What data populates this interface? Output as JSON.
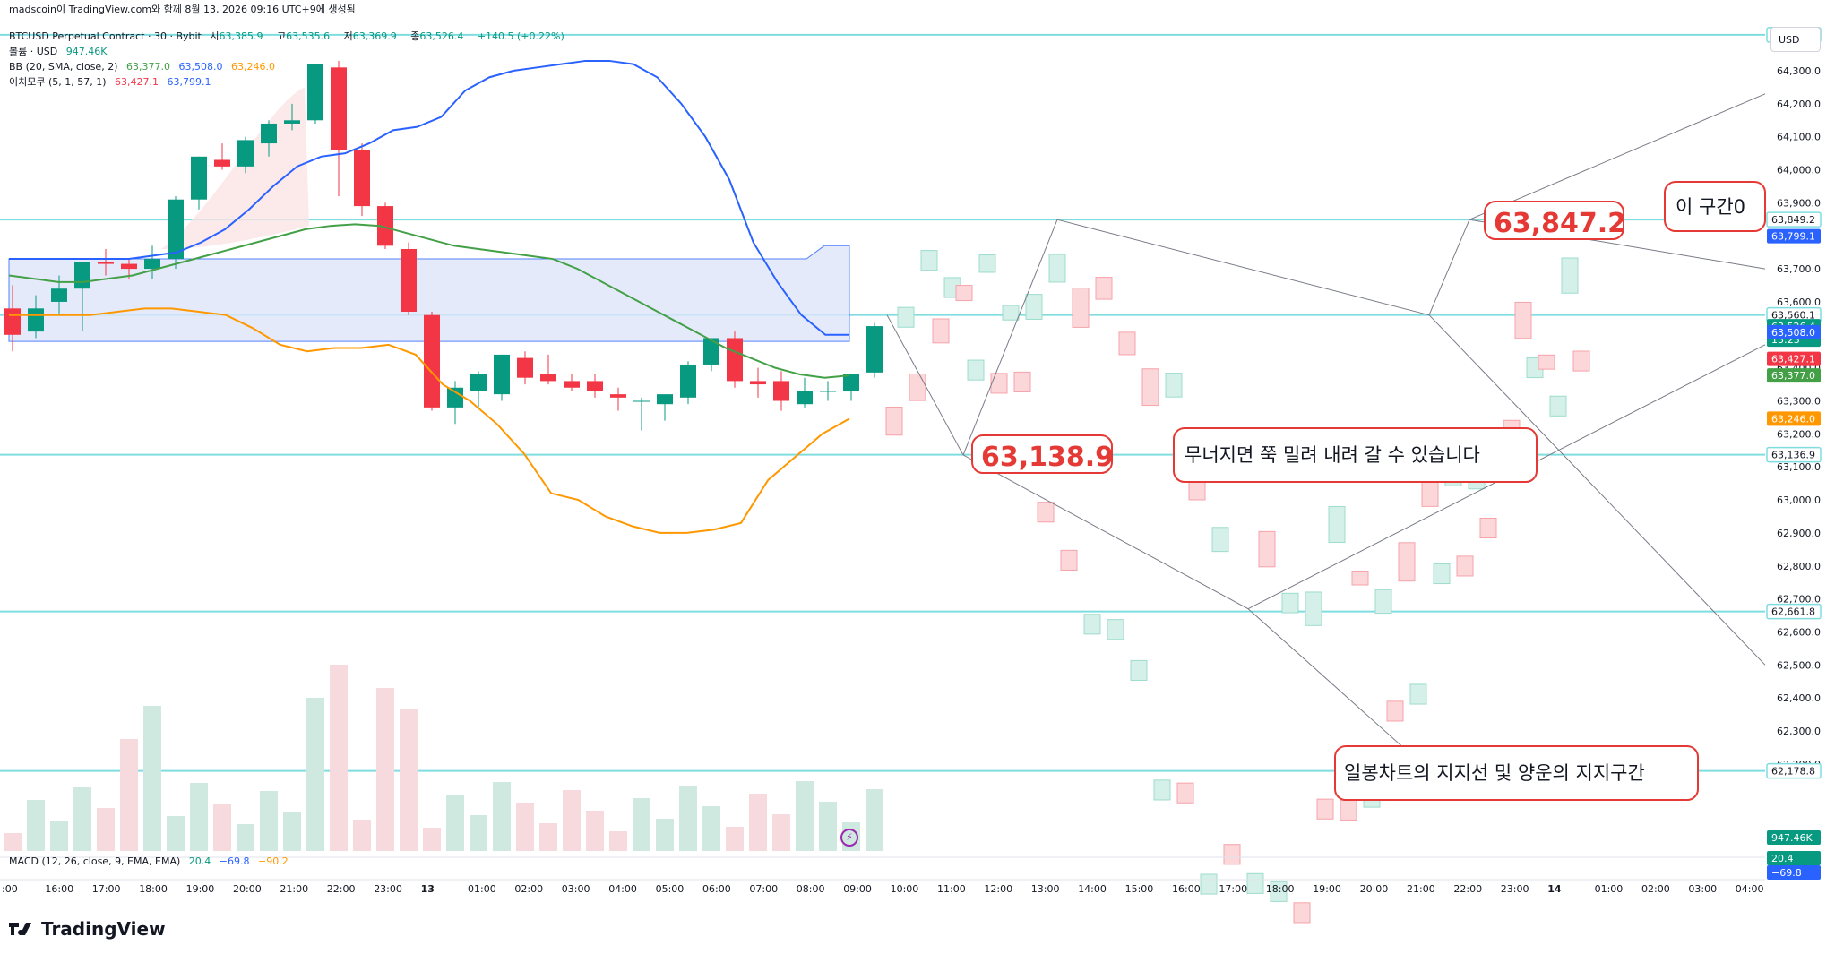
{
  "header": {
    "title": "madscoin이 TradingView.com와 함께 8월 13, 2026 09:16 UTC+9에 생성됨",
    "symbol": "BTCUSD Perpetual Contract · 30 · Bybit",
    "open_label": "시",
    "open": "63,385.9",
    "high_label": "고",
    "high": "63,535.6",
    "low_label": "저",
    "low": "63,369.9",
    "close_label": "종",
    "close": "63,526.4",
    "change": "+140.5 (+0.22%)",
    "volume_label": "볼륨 · USD",
    "volume_value": "947.46K",
    "bb_label": "BB (20, SMA, close, 2)",
    "bb_basis": "63,377.0",
    "bb_upper": "63,508.0",
    "bb_lower": "63,246.0",
    "ichimoku_label": "이치모쿠 (5, 1, 57, 1)",
    "ichimoku_a": "63,427.1",
    "ichimoku_b": "63,799.1",
    "macd_label": "MACD (12, 26, close, 9, EMA, EMA)",
    "macd_v1": "20.4",
    "macd_v2": "−69.8",
    "macd_v3": "−90.2"
  },
  "currency_button": "USD",
  "brand": "TradingView",
  "colors": {
    "up": "#089981",
    "down": "#f23645",
    "bb_upper": "#2962ff",
    "bb_basis": "#43a047",
    "bb_lower": "#ff9800",
    "hline": "#7fdde0",
    "annotation": "#e53935"
  },
  "annotations": {
    "price_low": "63,138.9",
    "price_high": "63,847.2",
    "note_collapse": "무너지면 쭉 밀려 내려 갈 수 있습니다",
    "note_section": "이 구간0",
    "note_support": "일봉차트의 지지선 및 양운의 지지구간"
  },
  "chart_data": {
    "type": "candlestick",
    "title": "BTCUSD Perpetual Contract · 30 · Bybit",
    "x_ticks": [
      ":00",
      "16:00",
      "17:00",
      "18:00",
      "19:00",
      "20:00",
      "21:00",
      "22:00",
      "23:00",
      "13",
      "01:00",
      "02:00",
      "03:00",
      "04:00",
      "05:00",
      "06:00",
      "07:00",
      "08:00",
      "09:00",
      "10:00",
      "11:00",
      "12:00",
      "13:00",
      "14:00",
      "15:00",
      "16:00",
      "17:00",
      "18:00",
      "19:00",
      "20:00",
      "21:00",
      "22:00",
      "23:00",
      "14",
      "01:00",
      "02:00",
      "03:00",
      "04:00"
    ],
    "y_ticks": [
      "64,300.0",
      "64,200.0",
      "64,100.0",
      "64,000.0",
      "63,900.0",
      "63,800.0",
      "63,700.0",
      "63,600.0",
      "63,500.0",
      "63,400.0",
      "63,300.0",
      "63,200.0",
      "63,100.0",
      "63,000.0",
      "62,900.0",
      "62,800.0",
      "62,700.0",
      "62,600.0",
      "62,500.0",
      "62,400.0",
      "62,300.0",
      "62,200.0"
    ],
    "y_range": [
      62170,
      64420
    ],
    "candles": [
      {
        "o": 63580,
        "h": 63650,
        "l": 63450,
        "c": 63500
      },
      {
        "o": 63510,
        "h": 63620,
        "l": 63490,
        "c": 63580
      },
      {
        "o": 63600,
        "h": 63680,
        "l": 63560,
        "c": 63640
      },
      {
        "o": 63640,
        "h": 63720,
        "l": 63510,
        "c": 63720
      },
      {
        "o": 63720,
        "h": 63760,
        "l": 63680,
        "c": 63715
      },
      {
        "o": 63715,
        "h": 63730,
        "l": 63670,
        "c": 63700
      },
      {
        "o": 63700,
        "h": 63770,
        "l": 63670,
        "c": 63730
      },
      {
        "o": 63730,
        "h": 63920,
        "l": 63700,
        "c": 63910
      },
      {
        "o": 63910,
        "h": 64040,
        "l": 63880,
        "c": 64040
      },
      {
        "o": 64030,
        "h": 64080,
        "l": 64000,
        "c": 64010
      },
      {
        "o": 64010,
        "h": 64100,
        "l": 63990,
        "c": 64090
      },
      {
        "o": 64080,
        "h": 64150,
        "l": 64040,
        "c": 64140
      },
      {
        "o": 64140,
        "h": 64200,
        "l": 64120,
        "c": 64150
      },
      {
        "o": 64150,
        "h": 64320,
        "l": 64140,
        "c": 64320
      },
      {
        "o": 64310,
        "h": 64330,
        "l": 63920,
        "c": 64060
      },
      {
        "o": 64060,
        "h": 64080,
        "l": 63860,
        "c": 63890
      },
      {
        "o": 63890,
        "h": 63900,
        "l": 63760,
        "c": 63770
      },
      {
        "o": 63760,
        "h": 63780,
        "l": 63560,
        "c": 63570
      },
      {
        "o": 63560,
        "h": 63570,
        "l": 63270,
        "c": 63280
      },
      {
        "o": 63280,
        "h": 63360,
        "l": 63230,
        "c": 63340
      },
      {
        "o": 63330,
        "h": 63390,
        "l": 63280,
        "c": 63380
      },
      {
        "o": 63320,
        "h": 63440,
        "l": 63300,
        "c": 63440
      },
      {
        "o": 63430,
        "h": 63450,
        "l": 63350,
        "c": 63370
      },
      {
        "o": 63380,
        "h": 63440,
        "l": 63350,
        "c": 63360
      },
      {
        "o": 63360,
        "h": 63380,
        "l": 63330,
        "c": 63340
      },
      {
        "o": 63360,
        "h": 63380,
        "l": 63310,
        "c": 63330
      },
      {
        "o": 63320,
        "h": 63340,
        "l": 63270,
        "c": 63310
      },
      {
        "o": 63300,
        "h": 63310,
        "l": 63210,
        "c": 63300
      },
      {
        "o": 63290,
        "h": 63310,
        "l": 63240,
        "c": 63320
      },
      {
        "o": 63310,
        "h": 63420,
        "l": 63290,
        "c": 63410
      },
      {
        "o": 63410,
        "h": 63490,
        "l": 63390,
        "c": 63490
      },
      {
        "o": 63490,
        "h": 63510,
        "l": 63340,
        "c": 63360
      },
      {
        "o": 63360,
        "h": 63400,
        "l": 63310,
        "c": 63350
      },
      {
        "o": 63360,
        "h": 63390,
        "l": 63270,
        "c": 63300
      },
      {
        "o": 63290,
        "h": 63370,
        "l": 63280,
        "c": 63330
      },
      {
        "o": 63330,
        "h": 63360,
        "l": 63300,
        "c": 63330
      },
      {
        "o": 63330,
        "h": 63380,
        "l": 63300,
        "c": 63380
      },
      {
        "o": 63385.9,
        "h": 63535.6,
        "l": 63369.9,
        "c": 63526.4
      }
    ],
    "bb_upper": [
      63730,
      63730,
      63730,
      63730,
      63730,
      63730,
      63740,
      63750,
      63780,
      63820,
      63880,
      63950,
      64010,
      64040,
      64050,
      64080,
      64120,
      64130,
      64160,
      64240,
      64280,
      64300,
      64310,
      64320,
      64330,
      64330,
      64320,
      64280,
      64200,
      64100,
      63970,
      63780,
      63660,
      63560,
      63500,
      63500
    ],
    "bb_basis": [
      63680,
      63670,
      63660,
      63660,
      63670,
      63680,
      63700,
      63720,
      63740,
      63760,
      63780,
      63800,
      63820,
      63830,
      63835,
      63830,
      63810,
      63790,
      63770,
      63760,
      63750,
      63740,
      63730,
      63700,
      63660,
      63620,
      63580,
      63540,
      63500,
      63460,
      63430,
      63400,
      63380,
      63370,
      63377
    ],
    "bb_lower": [
      63560,
      63560,
      63560,
      63560,
      63570,
      63580,
      63580,
      63570,
      63560,
      63520,
      63470,
      63450,
      63460,
      63460,
      63470,
      63440,
      63350,
      63300,
      63230,
      63140,
      63020,
      63000,
      62950,
      62920,
      62900,
      62900,
      62910,
      62930,
      63060,
      63130,
      63200,
      63246
    ]
  },
  "axis_labels": [
    {
      "text": "64,408.8",
      "kind": "hline"
    },
    {
      "text": "63,849.2",
      "kind": "hline"
    },
    {
      "text": "63,799.1",
      "kind": "ichimoku"
    },
    {
      "text": "63,560.1",
      "kind": "hline"
    },
    {
      "text": "63,526.4",
      "kind": "price"
    },
    {
      "text": "13:23",
      "kind": "countdown"
    },
    {
      "text": "63,508.0",
      "kind": "bb_upper"
    },
    {
      "text": "63,427.1",
      "kind": "ichimoku_a"
    },
    {
      "text": "63,377.0",
      "kind": "bb_basis"
    },
    {
      "text": "63,246.0",
      "kind": "bb_lower"
    },
    {
      "text": "63,136.9",
      "kind": "hline"
    },
    {
      "text": "62,661.8",
      "kind": "hline"
    },
    {
      "text": "62,178.8",
      "kind": "hline"
    },
    {
      "text": "947.46K",
      "kind": "volume"
    },
    {
      "text": "20.4",
      "kind": "macd"
    },
    {
      "text": "−69.8",
      "kind": "macd2"
    }
  ]
}
